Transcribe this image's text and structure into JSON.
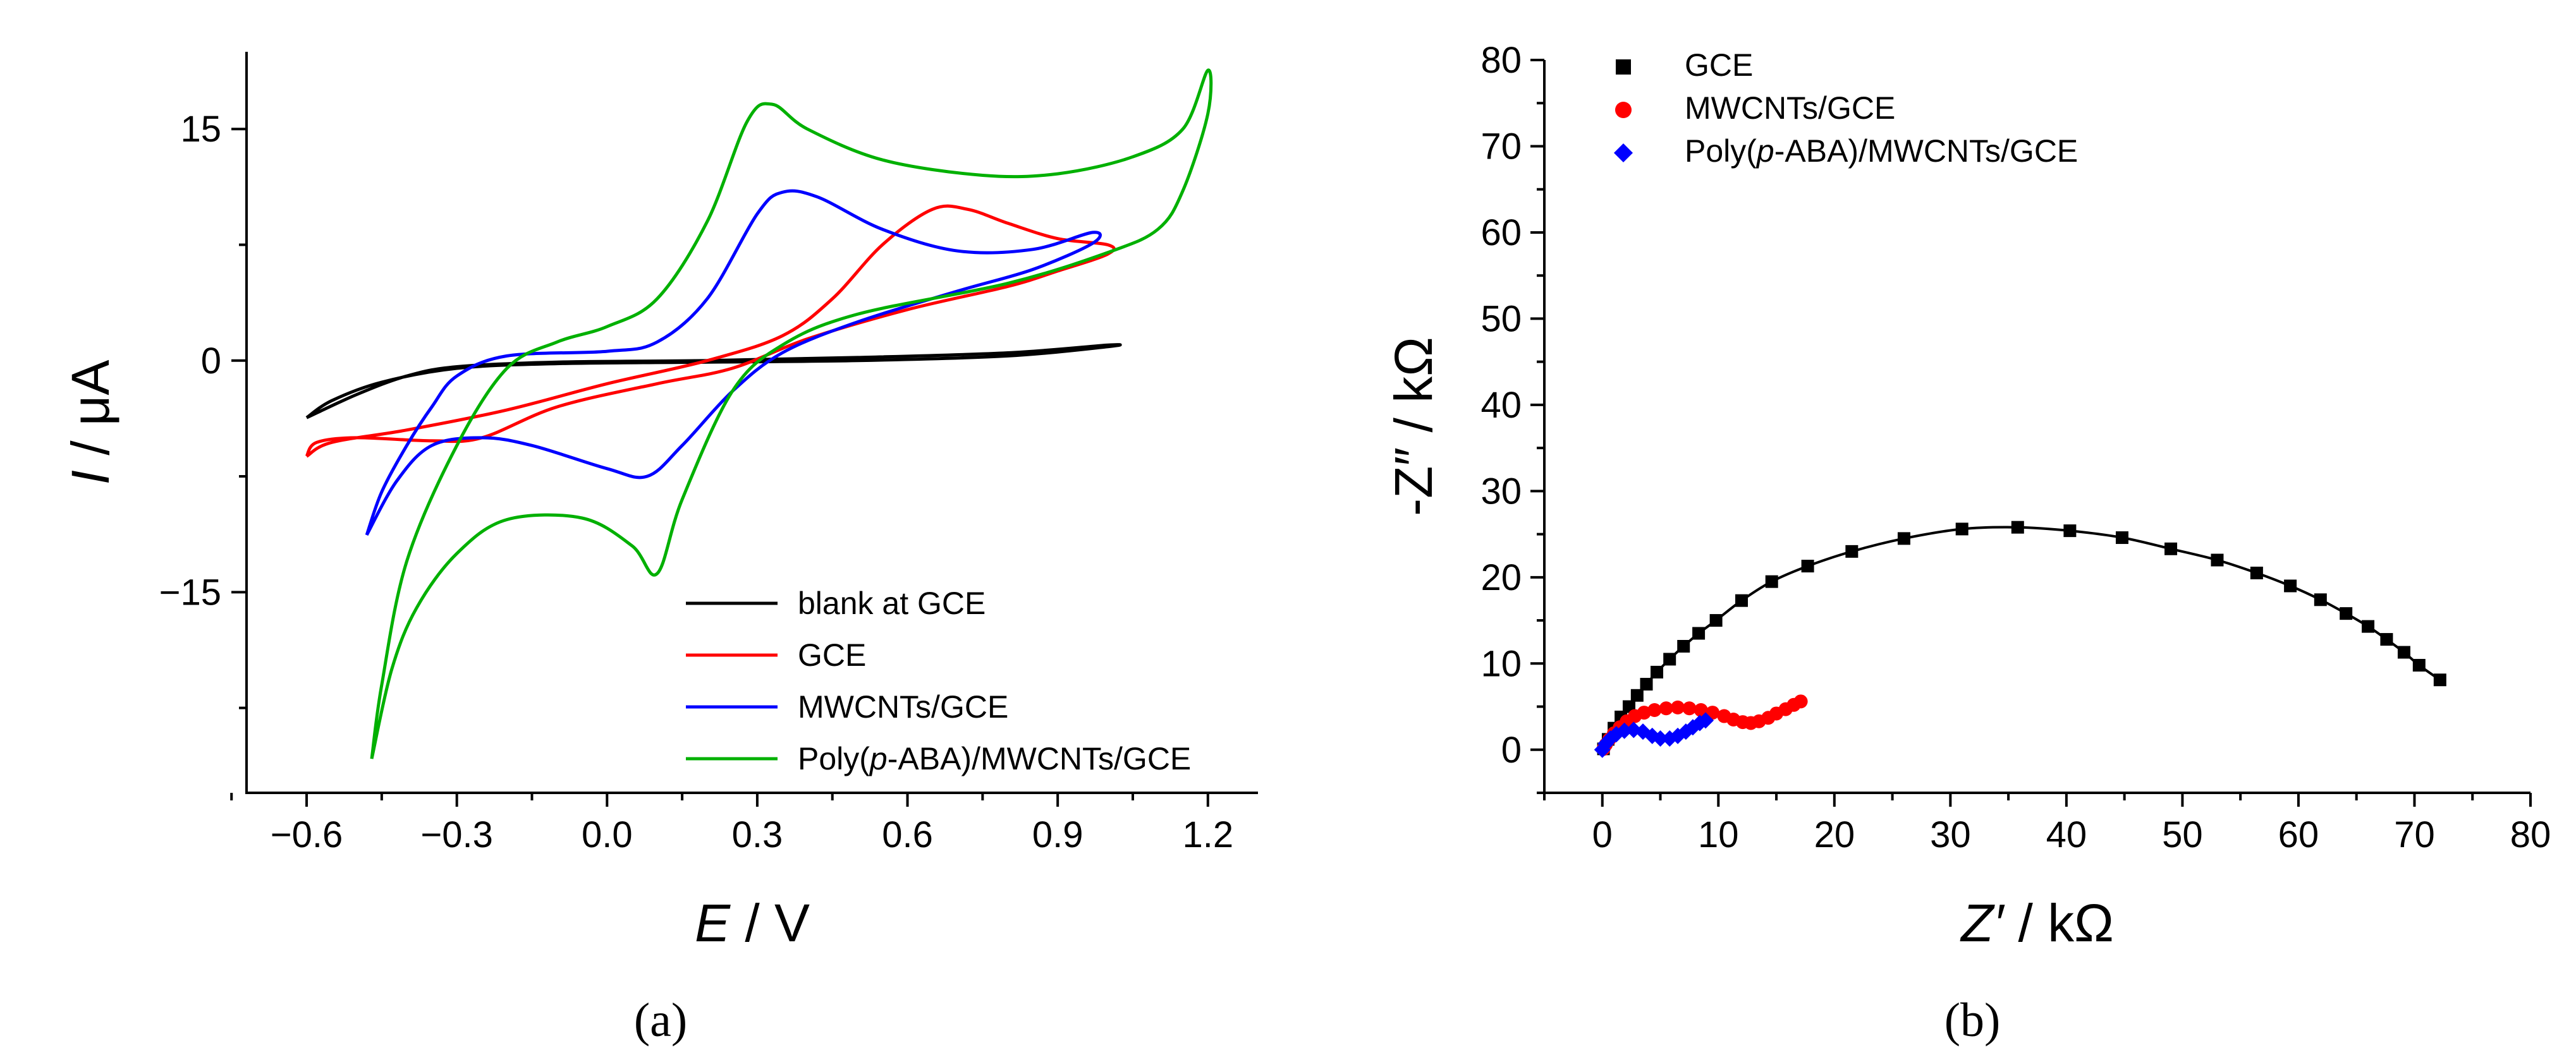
{
  "chart_data": [
    {
      "type": "line",
      "panel_label": "(a)",
      "xlabel_var": "E",
      "xlabel_unit": " / V",
      "ylabel_var": "I",
      "ylabel_unit": " / μA",
      "xlim": [
        -0.72,
        1.3
      ],
      "ylim": [
        -28,
        20
      ],
      "xticks": [
        -0.6,
        -0.3,
        0.0,
        0.3,
        0.6,
        0.9,
        1.2
      ],
      "xtick_labels": [
        "−0.6",
        "−0.3",
        "0.0",
        "0.3",
        "0.6",
        "0.9",
        "1.2"
      ],
      "yticks": [
        15,
        0,
        -15
      ],
      "ytick_labels": [
        "15",
        "0",
        "−15"
      ],
      "legend_position": "bottom-right",
      "series": [
        {
          "name": "blank at GCE",
          "color": "#000000",
          "points": [
            [
              -0.6,
              -3.7
            ],
            [
              -0.5,
              -2.2
            ],
            [
              -0.4,
              -1.0
            ],
            [
              -0.3,
              -0.4
            ],
            [
              -0.1,
              -0.1
            ],
            [
              0.2,
              0.0
            ],
            [
              0.5,
              0.2
            ],
            [
              0.8,
              0.5
            ],
            [
              1.0,
              1.0
            ],
            [
              1.0,
              0.9
            ],
            [
              0.8,
              0.3
            ],
            [
              0.5,
              0.0
            ],
            [
              0.2,
              -0.1
            ],
            [
              -0.1,
              -0.2
            ],
            [
              -0.3,
              -0.5
            ],
            [
              -0.45,
              -1.4
            ],
            [
              -0.55,
              -2.6
            ],
            [
              -0.6,
              -3.7
            ]
          ]
        },
        {
          "name": "GCE",
          "color": "#ff0000",
          "points": [
            [
              -0.6,
              -6.2
            ],
            [
              -0.55,
              -5.3
            ],
            [
              -0.4,
              -4.5
            ],
            [
              -0.2,
              -3.2
            ],
            [
              0.0,
              -1.5
            ],
            [
              0.2,
              0.0
            ],
            [
              0.35,
              1.6
            ],
            [
              0.45,
              4.0
            ],
            [
              0.55,
              7.5
            ],
            [
              0.65,
              9.8
            ],
            [
              0.72,
              9.8
            ],
            [
              0.8,
              8.9
            ],
            [
              0.9,
              7.9
            ],
            [
              1.0,
              7.5
            ],
            [
              1.0,
              6.9
            ],
            [
              0.9,
              5.8
            ],
            [
              0.8,
              4.8
            ],
            [
              0.6,
              3.3
            ],
            [
              0.4,
              1.4
            ],
            [
              0.25,
              -0.5
            ],
            [
              0.1,
              -1.5
            ],
            [
              -0.1,
              -3.0
            ],
            [
              -0.25,
              -5.0
            ],
            [
              -0.35,
              -5.2
            ],
            [
              -0.5,
              -5.0
            ],
            [
              -0.58,
              -5.3
            ],
            [
              -0.6,
              -6.2
            ]
          ]
        },
        {
          "name": "MWCNTs/GCE",
          "color": "#0000ff",
          "points": [
            [
              -0.48,
              -11.3
            ],
            [
              -0.45,
              -8.5
            ],
            [
              -0.4,
              -5.5
            ],
            [
              -0.35,
              -3.0
            ],
            [
              -0.3,
              -1.0
            ],
            [
              -0.2,
              0.3
            ],
            [
              0.0,
              0.6
            ],
            [
              0.1,
              1.2
            ],
            [
              0.2,
              4.0
            ],
            [
              0.3,
              9.5
            ],
            [
              0.35,
              10.9
            ],
            [
              0.42,
              10.6
            ],
            [
              0.55,
              8.5
            ],
            [
              0.7,
              7.1
            ],
            [
              0.85,
              7.2
            ],
            [
              0.97,
              8.3
            ],
            [
              0.97,
              7.6
            ],
            [
              0.85,
              5.9
            ],
            [
              0.7,
              4.5
            ],
            [
              0.5,
              2.5
            ],
            [
              0.35,
              0.5
            ],
            [
              0.25,
              -2.0
            ],
            [
              0.15,
              -5.5
            ],
            [
              0.08,
              -7.5
            ],
            [
              0.0,
              -7.0
            ],
            [
              -0.15,
              -5.5
            ],
            [
              -0.25,
              -5.0
            ],
            [
              -0.35,
              -5.5
            ],
            [
              -0.42,
              -7.8
            ],
            [
              -0.48,
              -11.3
            ]
          ]
        },
        {
          "name": "Poly(p-ABA)/MWCNTs/GCE",
          "color": "#00b000",
          "points": [
            [
              -0.47,
              -25.8
            ],
            [
              -0.45,
              -21.0
            ],
            [
              -0.4,
              -13.0
            ],
            [
              -0.3,
              -5.5
            ],
            [
              -0.2,
              -0.5
            ],
            [
              -0.1,
              1.2
            ],
            [
              0.0,
              2.2
            ],
            [
              0.1,
              4.0
            ],
            [
              0.2,
              9.0
            ],
            [
              0.28,
              15.5
            ],
            [
              0.33,
              16.6
            ],
            [
              0.4,
              15.0
            ],
            [
              0.55,
              13.0
            ],
            [
              0.75,
              12.0
            ],
            [
              0.9,
              12.1
            ],
            [
              1.05,
              13.2
            ],
            [
              1.15,
              15.0
            ],
            [
              1.2,
              18.8
            ],
            [
              1.2,
              16.0
            ],
            [
              1.15,
              11.0
            ],
            [
              1.1,
              8.5
            ],
            [
              1.0,
              7.0
            ],
            [
              0.8,
              5.0
            ],
            [
              0.5,
              3.0
            ],
            [
              0.35,
              1.0
            ],
            [
              0.25,
              -2.0
            ],
            [
              0.15,
              -9.0
            ],
            [
              0.1,
              -13.8
            ],
            [
              0.05,
              -12.0
            ],
            [
              -0.05,
              -10.2
            ],
            [
              -0.2,
              -10.3
            ],
            [
              -0.3,
              -12.5
            ],
            [
              -0.38,
              -16.0
            ],
            [
              -0.43,
              -20.0
            ],
            [
              -0.47,
              -25.8
            ]
          ]
        }
      ]
    },
    {
      "type": "scatter",
      "panel_label": "(b)",
      "xlabel_var": "Z′",
      "xlabel_unit": " / kΩ",
      "ylabel": "-Z″ / kΩ",
      "xlim": [
        -5,
        80
      ],
      "ylim": [
        -5,
        80
      ],
      "xticks": [
        0,
        10,
        20,
        30,
        40,
        50,
        60,
        70,
        80
      ],
      "xtick_labels": [
        "0",
        "10",
        "20",
        "30",
        "40",
        "50",
        "60",
        "70",
        "80"
      ],
      "yticks": [
        0,
        10,
        20,
        30,
        40,
        50,
        60,
        70,
        80
      ],
      "ytick_labels": [
        "0",
        "10",
        "20",
        "30",
        "40",
        "50",
        "60",
        "70",
        "80"
      ],
      "legend_position": "top-left",
      "series": [
        {
          "name": "GCE",
          "color": "#000000",
          "marker": "square",
          "fit_line": true,
          "points": [
            [
              0.1,
              0.1
            ],
            [
              0.5,
              1.2
            ],
            [
              1.0,
              2.5
            ],
            [
              1.6,
              3.8
            ],
            [
              2.3,
              5.0
            ],
            [
              3.0,
              6.3
            ],
            [
              3.8,
              7.6
            ],
            [
              4.7,
              9.0
            ],
            [
              5.8,
              10.5
            ],
            [
              7.0,
              12.0
            ],
            [
              8.3,
              13.5
            ],
            [
              9.8,
              15.0
            ],
            [
              12.0,
              17.3
            ],
            [
              14.6,
              19.5
            ],
            [
              17.7,
              21.3
            ],
            [
              21.5,
              23.0
            ],
            [
              26.0,
              24.5
            ],
            [
              31.0,
              25.6
            ],
            [
              35.8,
              25.8
            ],
            [
              40.3,
              25.4
            ],
            [
              44.8,
              24.6
            ],
            [
              49.0,
              23.3
            ],
            [
              53.0,
              22.0
            ],
            [
              56.4,
              20.5
            ],
            [
              59.3,
              19.0
            ],
            [
              61.9,
              17.4
            ],
            [
              64.1,
              15.8
            ],
            [
              66.0,
              14.3
            ],
            [
              67.6,
              12.8
            ],
            [
              69.1,
              11.3
            ],
            [
              70.4,
              9.8
            ],
            [
              72.2,
              8.1
            ]
          ]
        },
        {
          "name": "MWCNTs/GCE",
          "color": "#ff0000",
          "marker": "circle",
          "points": [
            [
              0.1,
              0.1
            ],
            [
              0.3,
              0.6
            ],
            [
              0.6,
              1.2
            ],
            [
              1.0,
              1.9
            ],
            [
              1.5,
              2.6
            ],
            [
              2.1,
              3.3
            ],
            [
              2.8,
              3.9
            ],
            [
              3.6,
              4.3
            ],
            [
              4.5,
              4.6
            ],
            [
              5.5,
              4.8
            ],
            [
              6.5,
              4.9
            ],
            [
              7.5,
              4.8
            ],
            [
              8.5,
              4.6
            ],
            [
              9.5,
              4.3
            ],
            [
              10.5,
              3.9
            ],
            [
              11.3,
              3.5
            ],
            [
              12.1,
              3.2
            ],
            [
              12.8,
              3.1
            ],
            [
              13.5,
              3.3
            ],
            [
              14.3,
              3.7
            ],
            [
              15.0,
              4.2
            ],
            [
              15.8,
              4.7
            ],
            [
              16.5,
              5.2
            ],
            [
              17.1,
              5.6
            ]
          ]
        },
        {
          "name": "Poly(p-ABA)/MWCNTs/GCE",
          "color": "#0000ff",
          "marker": "diamond",
          "points": [
            [
              0.0,
              0.0
            ],
            [
              0.3,
              0.7
            ],
            [
              0.7,
              1.3
            ],
            [
              1.2,
              1.8
            ],
            [
              1.9,
              2.2
            ],
            [
              2.7,
              2.3
            ],
            [
              3.5,
              2.1
            ],
            [
              4.3,
              1.6
            ],
            [
              5.0,
              1.3
            ],
            [
              5.8,
              1.3
            ],
            [
              6.5,
              1.6
            ],
            [
              7.2,
              2.1
            ],
            [
              7.8,
              2.6
            ],
            [
              8.4,
              3.1
            ],
            [
              8.9,
              3.4
            ]
          ]
        }
      ]
    }
  ]
}
